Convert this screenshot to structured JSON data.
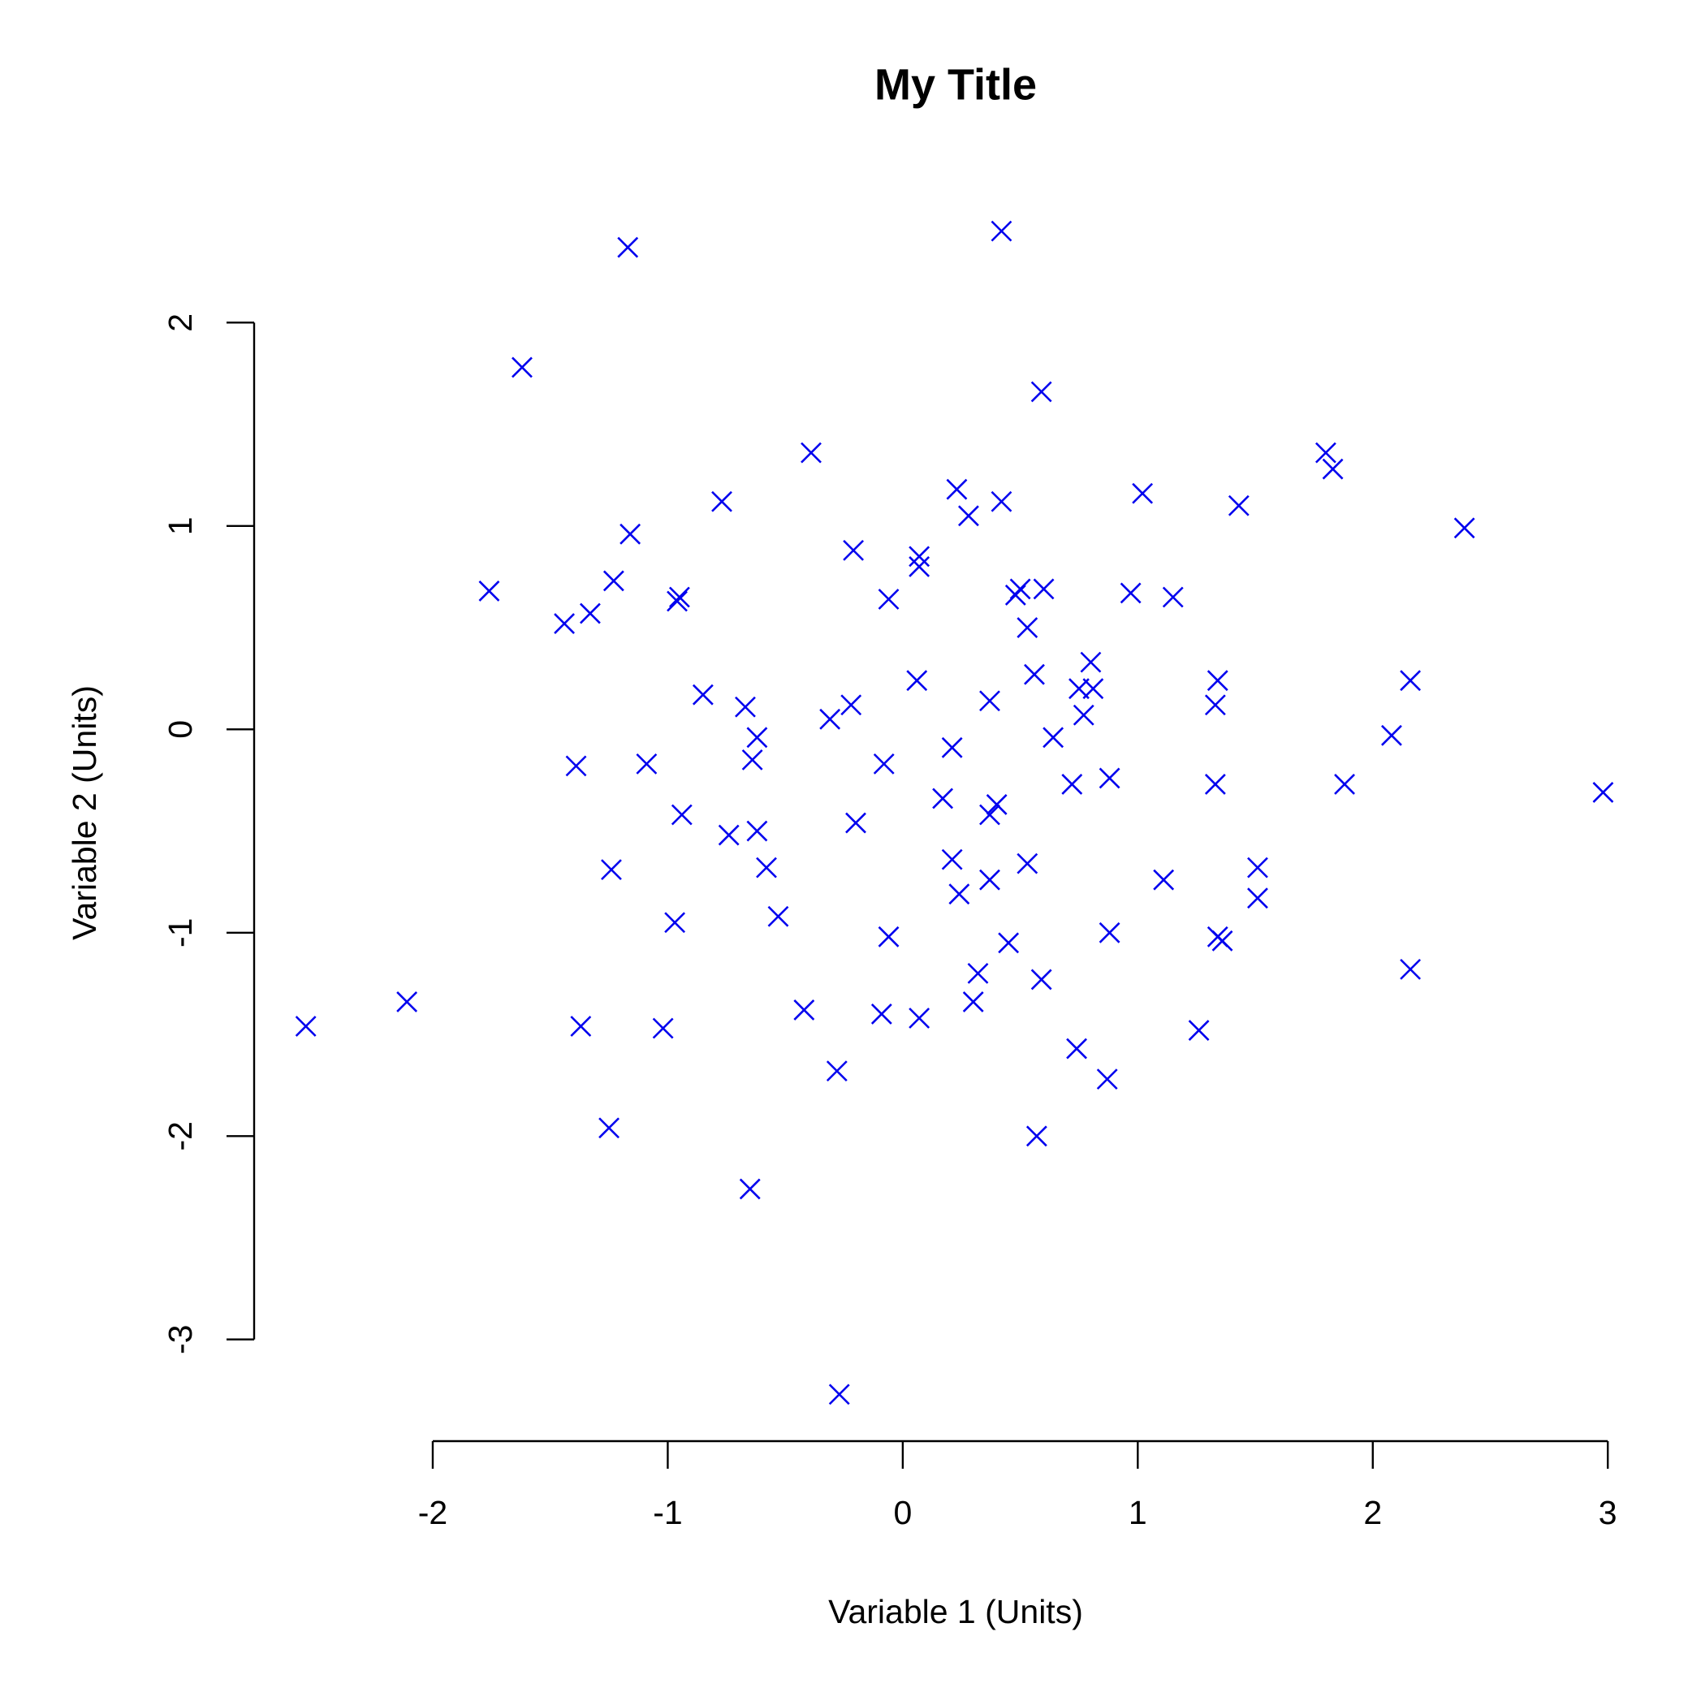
{
  "chart_data": {
    "type": "scatter",
    "title": "My Title",
    "x_label": "Variable 1 (Units)",
    "y_label": "Variable 2 (Units)",
    "color": "#0000ee",
    "marker": "x",
    "xlim": [
      -2.76,
      3.21
    ],
    "ylim": [
      -3.5,
      2.68
    ],
    "xticks": [
      -2,
      -1,
      0,
      1,
      2,
      3
    ],
    "yticks": [
      -3,
      -2,
      -1,
      0,
      1,
      2
    ],
    "x": [
      -2.54,
      -2.11,
      -1.76,
      -1.62,
      -1.44,
      -1.39,
      -1.37,
      -1.33,
      -1.25,
      -1.24,
      -1.23,
      -1.17,
      -1.16,
      -1.09,
      -1.02,
      -0.97,
      -0.96,
      -0.95,
      -0.94,
      -0.85,
      -0.77,
      -0.74,
      -0.67,
      -0.65,
      -0.64,
      -0.62,
      -0.62,
      -0.58,
      -0.53,
      -0.42,
      -0.39,
      -0.31,
      -0.28,
      -0.27,
      -0.22,
      -0.21,
      -0.2,
      -0.09,
      -0.08,
      -0.06,
      -0.06,
      0.06,
      0.07,
      0.07,
      0.07,
      0.17,
      0.21,
      0.21,
      0.23,
      0.24,
      0.28,
      0.3,
      0.32,
      0.37,
      0.37,
      0.37,
      0.4,
      0.42,
      0.42,
      0.45,
      0.48,
      0.5,
      0.53,
      0.53,
      0.56,
      0.57,
      0.59,
      0.59,
      0.6,
      0.64,
      0.72,
      0.74,
      0.75,
      0.77,
      0.8,
      0.81,
      0.87,
      0.88,
      0.88,
      0.97,
      1.02,
      1.11,
      1.15,
      1.26,
      1.33,
      1.33,
      1.34,
      1.34,
      1.36,
      1.43,
      1.51,
      1.51,
      1.8,
      1.83,
      1.88,
      2.08,
      2.16,
      2.16,
      2.39,
      2.98
    ],
    "y": [
      -1.46,
      -1.34,
      0.68,
      1.78,
      0.52,
      -0.18,
      -1.46,
      0.57,
      -1.96,
      -0.69,
      0.73,
      2.37,
      0.96,
      -0.17,
      -1.47,
      -0.95,
      0.63,
      0.65,
      -0.42,
      0.17,
      1.12,
      -0.52,
      0.11,
      -2.26,
      -0.15,
      -0.5,
      -0.04,
      -0.68,
      -0.92,
      -1.38,
      1.36,
      0.05,
      -1.68,
      -3.27,
      0.12,
      0.88,
      -0.46,
      -1.4,
      -0.17,
      0.64,
      -1.02,
      0.24,
      0.85,
      0.8,
      -1.42,
      -0.34,
      -0.64,
      -0.09,
      1.18,
      -0.81,
      1.05,
      -1.34,
      -1.2,
      0.14,
      -0.42,
      -0.74,
      -0.37,
      1.12,
      2.45,
      -1.05,
      0.66,
      0.69,
      0.5,
      -0.66,
      0.27,
      -2.0,
      1.66,
      -1.23,
      0.69,
      -0.04,
      -0.27,
      -1.57,
      0.2,
      0.07,
      0.33,
      0.2,
      -1.72,
      -1.0,
      -0.24,
      0.67,
      1.16,
      -0.74,
      0.65,
      -1.48,
      -0.27,
      0.12,
      0.24,
      -1.02,
      -1.04,
      1.1,
      -0.68,
      -0.83,
      1.36,
      1.28,
      -0.27,
      -0.03,
      -1.18,
      0.24,
      0.99,
      -0.31
    ]
  }
}
